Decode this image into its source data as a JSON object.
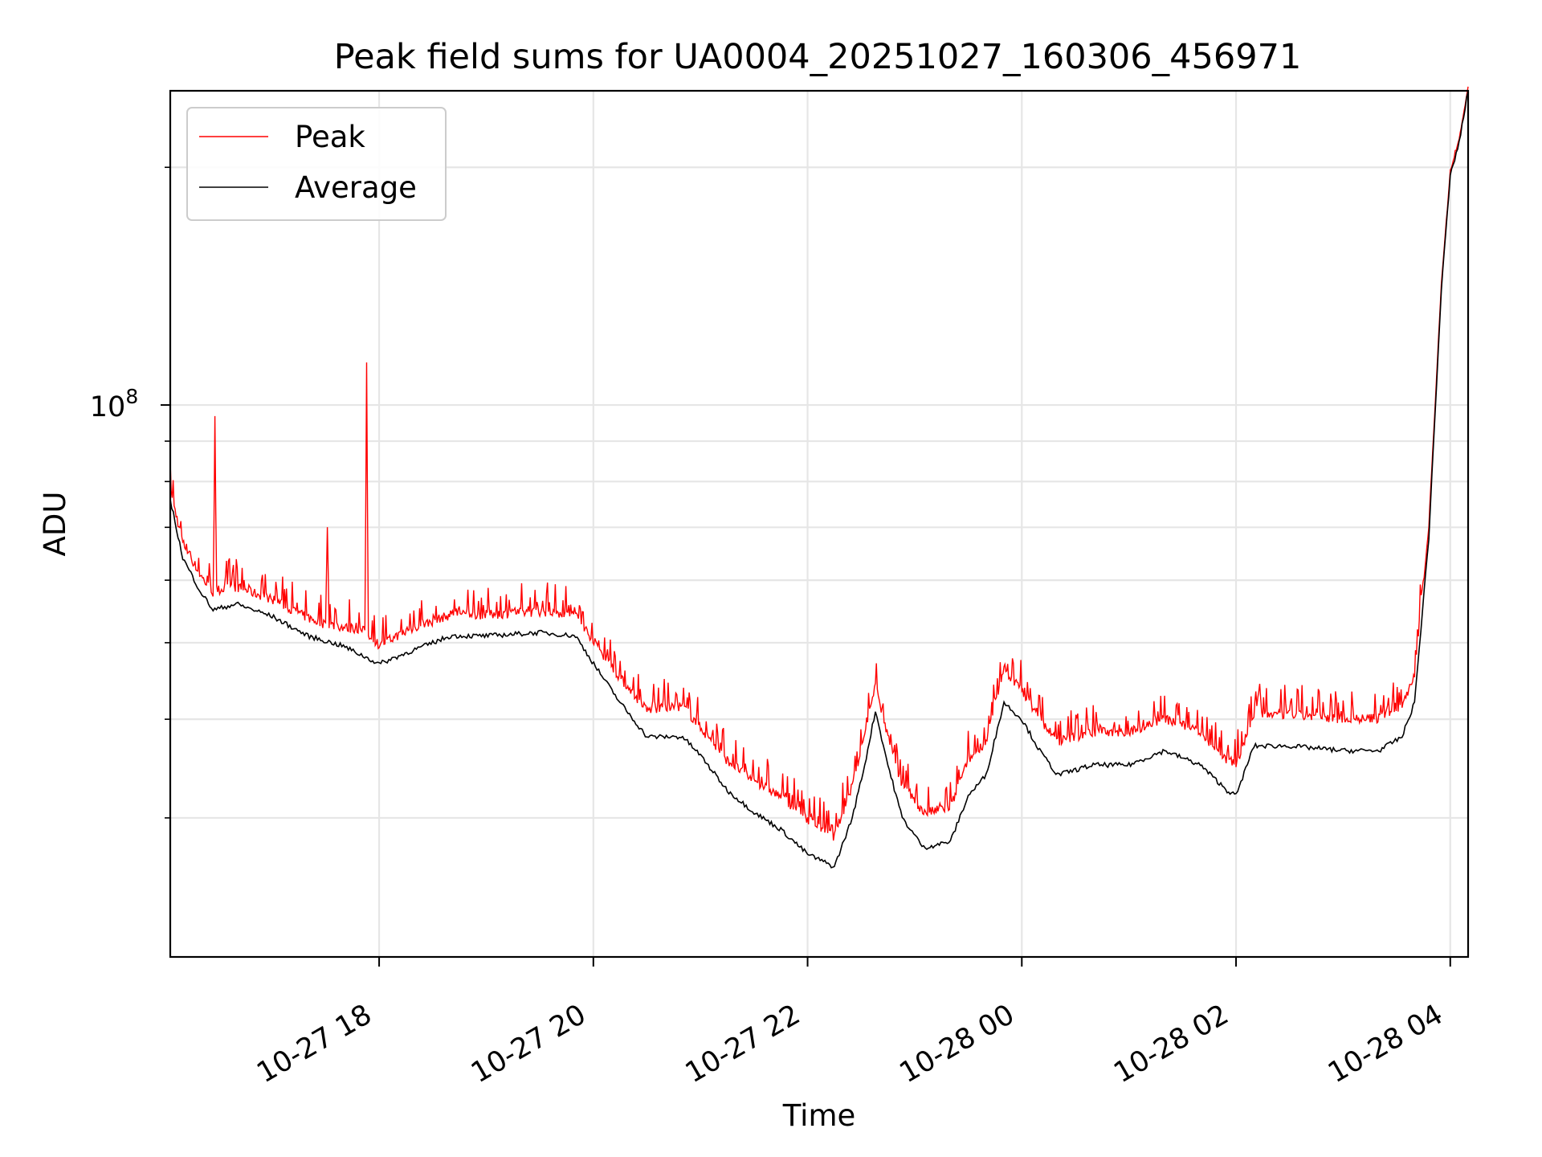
{
  "chart_data": {
    "type": "line",
    "title": "Peak field sums for UA0004_20251027_160306_456971",
    "xlabel": "Time",
    "ylabel": "ADU",
    "x_scale": "time",
    "y_scale": "log",
    "xlim": [
      "2025-10-27 16:03",
      "2025-10-28 04:10"
    ],
    "ylim": [
      20000000,
      250000000
    ],
    "grid": true,
    "legend_position": "top-left",
    "x_ticks": [
      {
        "t": "2025-10-27 18:00",
        "label": "10-27 18"
      },
      {
        "t": "2025-10-27 20:00",
        "label": "10-27 20"
      },
      {
        "t": "2025-10-27 22:00",
        "label": "10-27 22"
      },
      {
        "t": "2025-10-28 00:00",
        "label": "10-28 00"
      },
      {
        "t": "2025-10-28 02:00",
        "label": "10-28 02"
      },
      {
        "t": "2025-10-28 04:00",
        "label": "10-28 04"
      }
    ],
    "y_major_ticks": [
      {
        "value": 100000000,
        "label": "10",
        "exponent": "8"
      }
    ],
    "y_minor_ticks": [
      30000000,
      40000000,
      50000000,
      60000000,
      70000000,
      80000000,
      90000000,
      200000000
    ],
    "series": [
      {
        "name": "Average",
        "color": "#000000",
        "points": [
          [
            "2025-10-27 16:03",
            76000000
          ],
          [
            "2025-10-27 16:10",
            64000000
          ],
          [
            "2025-10-27 16:20",
            58000000
          ],
          [
            "2025-10-27 16:27",
            55000000
          ],
          [
            "2025-10-27 16:40",
            56000000
          ],
          [
            "2025-10-27 17:00",
            54000000
          ],
          [
            "2025-10-27 17:20",
            51000000
          ],
          [
            "2025-10-27 17:40",
            49500000
          ],
          [
            "2025-10-27 18:00",
            47000000
          ],
          [
            "2025-10-27 18:20",
            49000000
          ],
          [
            "2025-10-27 18:40",
            51000000
          ],
          [
            "2025-10-27 19:00",
            51000000
          ],
          [
            "2025-10-27 19:30",
            51500000
          ],
          [
            "2025-10-27 19:50",
            51000000
          ],
          [
            "2025-10-27 20:03",
            46000000
          ],
          [
            "2025-10-27 20:15",
            42000000
          ],
          [
            "2025-10-27 20:30",
            38000000
          ],
          [
            "2025-10-27 20:50",
            38000000
          ],
          [
            "2025-10-27 21:00",
            36000000
          ],
          [
            "2025-10-27 21:15",
            32500000
          ],
          [
            "2025-10-27 21:30",
            30500000
          ],
          [
            "2025-10-27 21:45",
            29000000
          ],
          [
            "2025-10-27 22:00",
            27000000
          ],
          [
            "2025-10-27 22:15",
            26000000
          ],
          [
            "2025-10-27 22:25",
            30000000
          ],
          [
            "2025-10-27 22:32",
            35000000
          ],
          [
            "2025-10-27 22:38",
            41000000
          ],
          [
            "2025-10-27 22:45",
            35000000
          ],
          [
            "2025-10-27 22:53",
            30000000
          ],
          [
            "2025-10-27 23:05",
            27500000
          ],
          [
            "2025-10-27 23:20",
            28000000
          ],
          [
            "2025-10-27 23:30",
            32000000
          ],
          [
            "2025-10-27 23:40",
            34000000
          ],
          [
            "2025-10-27 23:50",
            42000000
          ],
          [
            "2025-10-28 00:00",
            40000000
          ],
          [
            "2025-10-28 00:10",
            36500000
          ],
          [
            "2025-10-28 00:20",
            34000000
          ],
          [
            "2025-10-28 00:40",
            35000000
          ],
          [
            "2025-10-28 01:00",
            35000000
          ],
          [
            "2025-10-28 01:20",
            36500000
          ],
          [
            "2025-10-28 01:40",
            35000000
          ],
          [
            "2025-10-28 01:55",
            32500000
          ],
          [
            "2025-10-28 02:00",
            32000000
          ],
          [
            "2025-10-28 02:10",
            37000000
          ],
          [
            "2025-10-28 02:30",
            37000000
          ],
          [
            "2025-10-28 03:00",
            36500000
          ],
          [
            "2025-10-28 03:20",
            36500000
          ],
          [
            "2025-10-28 03:33",
            38000000
          ],
          [
            "2025-10-28 03:40",
            42000000
          ],
          [
            "2025-10-28 03:48",
            68000000
          ],
          [
            "2025-10-28 03:55",
            140000000
          ],
          [
            "2025-10-28 04:00",
            195000000
          ],
          [
            "2025-10-28 04:05",
            215000000
          ],
          [
            "2025-10-28 04:10",
            250000000
          ]
        ]
      },
      {
        "name": "Peak",
        "color": "#ff0000",
        "points": [
          [
            "2025-10-27 16:03",
            77000000
          ],
          [
            "2025-10-27 16:10",
            66000000
          ],
          [
            "2025-10-27 16:20",
            60000000
          ],
          [
            "2025-10-27 16:27",
            57000000
          ],
          [
            "2025-10-27 16:28",
            88000000
          ],
          [
            "2025-10-27 16:29",
            57500000
          ],
          [
            "2025-10-27 16:40",
            58000000
          ],
          [
            "2025-10-27 17:00",
            56000000
          ],
          [
            "2025-10-27 17:20",
            53000000
          ],
          [
            "2025-10-27 17:30",
            52000000
          ],
          [
            "2025-10-27 17:31",
            70000000
          ],
          [
            "2025-10-27 17:32",
            52000000
          ],
          [
            "2025-10-27 17:52",
            51000000
          ],
          [
            "2025-10-27 17:53",
            105000000
          ],
          [
            "2025-10-27 17:54",
            50500000
          ],
          [
            "2025-10-27 18:00",
            49000000
          ],
          [
            "2025-10-27 18:20",
            51500000
          ],
          [
            "2025-10-27 18:40",
            53500000
          ],
          [
            "2025-10-27 19:00",
            53500000
          ],
          [
            "2025-10-27 19:30",
            54000000
          ],
          [
            "2025-10-27 19:50",
            53500000
          ],
          [
            "2025-10-27 20:03",
            48500000
          ],
          [
            "2025-10-27 20:15",
            44500000
          ],
          [
            "2025-10-27 20:30",
            40500000
          ],
          [
            "2025-10-27 20:50",
            41000000
          ],
          [
            "2025-10-27 21:00",
            38500000
          ],
          [
            "2025-10-27 21:15",
            35000000
          ],
          [
            "2025-10-27 21:30",
            33000000
          ],
          [
            "2025-10-27 21:45",
            31500000
          ],
          [
            "2025-10-27 22:00",
            29500000
          ],
          [
            "2025-10-27 22:15",
            28000000
          ],
          [
            "2025-10-27 22:25",
            32500000
          ],
          [
            "2025-10-27 22:32",
            37500000
          ],
          [
            "2025-10-27 22:38",
            43500000
          ],
          [
            "2025-10-27 22:45",
            37500000
          ],
          [
            "2025-10-27 22:53",
            32500000
          ],
          [
            "2025-10-27 23:05",
            30000000
          ],
          [
            "2025-10-27 23:20",
            30500000
          ],
          [
            "2025-10-27 23:30",
            35000000
          ],
          [
            "2025-10-27 23:40",
            37000000
          ],
          [
            "2025-10-27 23:50",
            45500000
          ],
          [
            "2025-10-28 00:00",
            43000000
          ],
          [
            "2025-10-28 00:10",
            39500000
          ],
          [
            "2025-10-28 00:20",
            37000000
          ],
          [
            "2025-10-28 00:40",
            38000000
          ],
          [
            "2025-10-28 01:00",
            38000000
          ],
          [
            "2025-10-28 01:20",
            39500000
          ],
          [
            "2025-10-28 01:40",
            38000000
          ],
          [
            "2025-10-28 01:55",
            35000000
          ],
          [
            "2025-10-28 02:00",
            34500000
          ],
          [
            "2025-10-28 02:10",
            40000000
          ],
          [
            "2025-10-28 02:30",
            40000000
          ],
          [
            "2025-10-28 03:00",
            39500000
          ],
          [
            "2025-10-28 03:20",
            39500000
          ],
          [
            "2025-10-28 03:33",
            41000000
          ],
          [
            "2025-10-28 03:40",
            45000000
          ],
          [
            "2025-10-28 03:48",
            70000000
          ],
          [
            "2025-10-28 03:55",
            142000000
          ],
          [
            "2025-10-28 04:00",
            197000000
          ],
          [
            "2025-10-28 04:05",
            217000000
          ],
          [
            "2025-10-28 04:10",
            252000000
          ]
        ]
      }
    ],
    "legend": [
      {
        "name": "Peak",
        "color": "#ff0000"
      },
      {
        "name": "Average",
        "color": "#000000"
      }
    ]
  }
}
